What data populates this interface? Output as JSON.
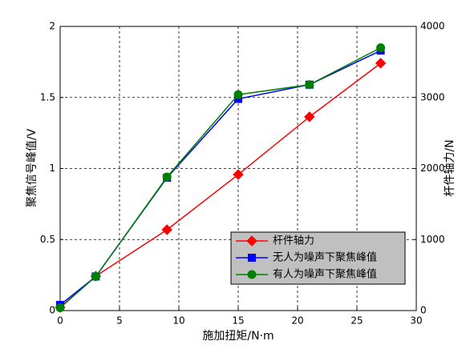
{
  "chart_data": {
    "type": "line",
    "x_label": "施加扭矩/N·m",
    "y_label": "聚焦信号峰值/V",
    "y2_label": "杆件轴力/N",
    "xlim": [
      0,
      30
    ],
    "xticks": [
      0,
      5,
      10,
      15,
      20,
      25,
      30
    ],
    "ylim": [
      0,
      2
    ],
    "yticks": [
      0,
      0.5,
      1,
      1.5,
      2
    ],
    "y2lim": [
      0,
      4000
    ],
    "y2ticks": [
      0,
      1000,
      2000,
      3000,
      4000
    ],
    "grid": true,
    "legend_position": "lower right",
    "x": [
      0,
      3,
      9,
      15,
      21,
      27
    ],
    "series": [
      {
        "name": "杆件轴力",
        "color": "#ff0000",
        "marker": "diamond",
        "axis": "y2",
        "values": [
          45,
          485,
          1138,
          1915,
          2727,
          3482
        ]
      },
      {
        "name": "无人为噪声下聚焦峰值",
        "color": "#0000ff",
        "marker": "square",
        "values": [
          0.04,
          0.24,
          0.935,
          1.49,
          1.59,
          1.83
        ]
      },
      {
        "name": "有人为噪声下聚焦峰值",
        "color": "#008000",
        "marker": "circle",
        "values": [
          0.02,
          0.24,
          0.94,
          1.52,
          1.59,
          1.85
        ]
      }
    ]
  }
}
